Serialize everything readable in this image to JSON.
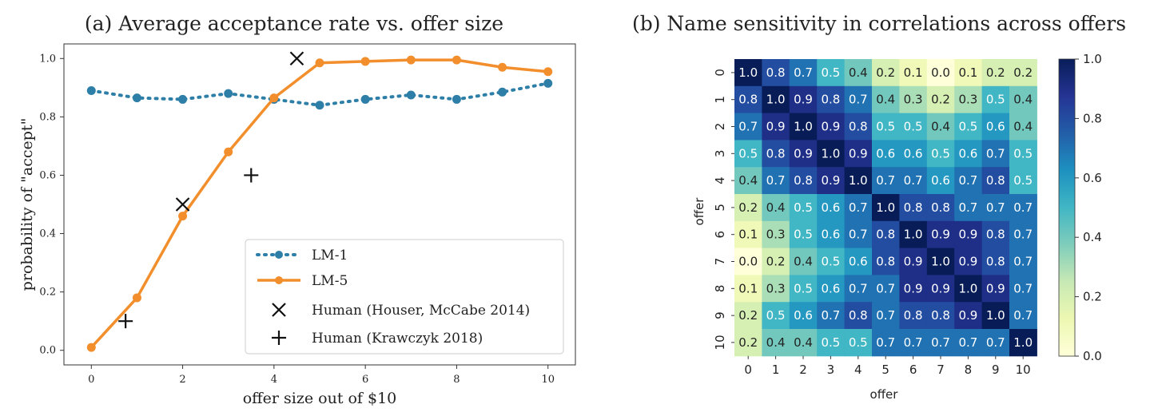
{
  "chart_data": [
    {
      "type": "line",
      "title": "(a) Average acceptance rate vs. offer size",
      "xlabel": "offer size out of $10",
      "ylabel": "probability of \"accept\"",
      "xlim": [
        -0.6,
        10.6
      ],
      "ylim": [
        -0.05,
        1.05
      ],
      "xticks": [
        0,
        2,
        4,
        6,
        8,
        10
      ],
      "yticks": [
        0.0,
        0.2,
        0.4,
        0.6,
        0.8,
        1.0
      ],
      "ytick_labels": [
        "0.0",
        "0.2",
        "0.4",
        "0.6",
        "0.8",
        "1.0"
      ],
      "legend_position": "lower-right",
      "series": [
        {
          "name": "LM-1",
          "style": "dotted",
          "marker": "circle",
          "color": "#2e7fa8",
          "x": [
            0,
            1,
            2,
            3,
            4,
            5,
            6,
            7,
            8,
            9,
            10
          ],
          "y": [
            0.89,
            0.865,
            0.86,
            0.88,
            0.86,
            0.84,
            0.86,
            0.875,
            0.86,
            0.885,
            0.915
          ]
        },
        {
          "name": "LM-5",
          "style": "solid",
          "marker": "circle",
          "color": "#f28e2b",
          "x": [
            0,
            1,
            2,
            3,
            4,
            5,
            6,
            7,
            8,
            9,
            10
          ],
          "y": [
            0.01,
            0.18,
            0.46,
            0.68,
            0.865,
            0.985,
            0.99,
            0.995,
            0.995,
            0.97,
            0.955
          ]
        },
        {
          "name": "Human (Houser, McCabe 2014)",
          "marker": "x",
          "color": "#111111",
          "x": [
            2,
            4.5
          ],
          "y": [
            0.5,
            1.0
          ]
        },
        {
          "name": "Human (Krawczyk 2018)",
          "marker": "plus",
          "color": "#111111",
          "x": [
            0.75,
            3.5
          ],
          "y": [
            0.1,
            0.6
          ]
        }
      ]
    },
    {
      "type": "heatmap",
      "title": "(b) Name sensitivity in correlations across offers",
      "xlabel": "offer",
      "ylabel": "offer",
      "labels": [
        "0",
        "1",
        "2",
        "3",
        "4",
        "5",
        "6",
        "7",
        "8",
        "9",
        "10"
      ],
      "matrix": [
        [
          1.0,
          0.8,
          0.7,
          0.5,
          0.4,
          0.2,
          0.1,
          0.0,
          0.1,
          0.2,
          0.2
        ],
        [
          0.8,
          1.0,
          0.9,
          0.8,
          0.7,
          0.4,
          0.3,
          0.2,
          0.3,
          0.5,
          0.4
        ],
        [
          0.7,
          0.9,
          1.0,
          0.9,
          0.8,
          0.5,
          0.5,
          0.4,
          0.5,
          0.6,
          0.4
        ],
        [
          0.5,
          0.8,
          0.9,
          1.0,
          0.9,
          0.6,
          0.6,
          0.5,
          0.6,
          0.7,
          0.5
        ],
        [
          0.4,
          0.7,
          0.8,
          0.9,
          1.0,
          0.7,
          0.7,
          0.6,
          0.7,
          0.8,
          0.5
        ],
        [
          0.2,
          0.4,
          0.5,
          0.6,
          0.7,
          1.0,
          0.8,
          0.8,
          0.7,
          0.7,
          0.7
        ],
        [
          0.1,
          0.3,
          0.5,
          0.6,
          0.7,
          0.8,
          1.0,
          0.9,
          0.9,
          0.8,
          0.7
        ],
        [
          0.0,
          0.2,
          0.4,
          0.5,
          0.6,
          0.8,
          0.9,
          1.0,
          0.9,
          0.8,
          0.7
        ],
        [
          0.1,
          0.3,
          0.5,
          0.6,
          0.7,
          0.7,
          0.9,
          0.9,
          1.0,
          0.9,
          0.7
        ],
        [
          0.2,
          0.5,
          0.6,
          0.7,
          0.8,
          0.7,
          0.8,
          0.8,
          0.9,
          1.0,
          0.7
        ],
        [
          0.2,
          0.4,
          0.4,
          0.5,
          0.5,
          0.7,
          0.7,
          0.7,
          0.7,
          0.7,
          1.0
        ]
      ],
      "colorscale": "YlGnBu",
      "colorbar": {
        "range": [
          0.0,
          1.0
        ],
        "ticks": [
          0.0,
          0.2,
          0.4,
          0.6,
          0.8,
          1.0
        ],
        "tick_labels": [
          "0.0",
          "0.2",
          "0.4",
          "0.6",
          "0.8",
          "1.0"
        ]
      }
    }
  ]
}
